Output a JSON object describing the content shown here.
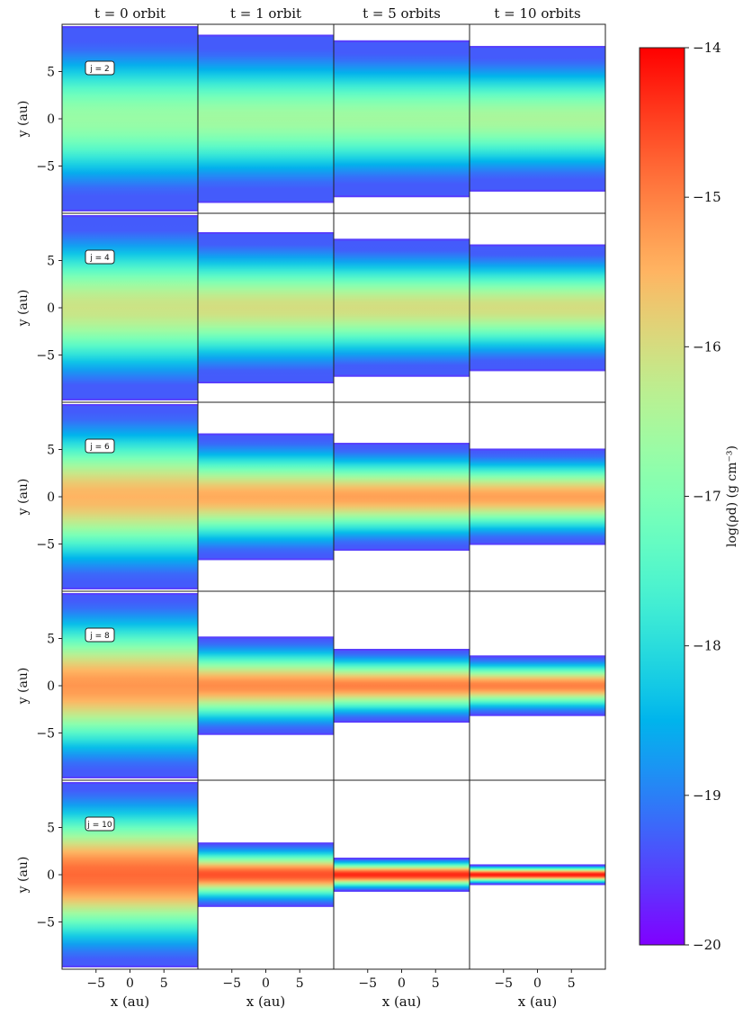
{
  "chart_data": {
    "type": "heatmap",
    "column_titles": [
      "t = 0 orbit",
      "t = 1 orbit",
      "t = 5 orbits",
      "t = 10 orbits"
    ],
    "row_labels": [
      "j = 2",
      "j = 4",
      "j = 6",
      "j = 8",
      "j = 10"
    ],
    "xlabel": "x (au)",
    "ylabel": "y (au)",
    "xlim": [
      -10,
      10
    ],
    "ylim": [
      -10,
      10
    ],
    "xticks": [
      -5,
      0,
      5
    ],
    "yticks": [
      5,
      0,
      -5
    ],
    "colorbar": {
      "label": "log(ρd) (g cm⁻³)",
      "range": [
        -20,
        -14
      ],
      "ticks": [
        -14,
        -15,
        -16,
        -17,
        -18,
        -19,
        -20
      ],
      "colormap": "rainbow"
    },
    "panels_note_values": "peak density (log g cm^-3) and vertical half-extent of dust layer (au), estimated",
    "panels": [
      [
        {
          "peak": -16.7,
          "half_extent": 9.8
        },
        {
          "peak": -16.6,
          "half_extent": 8.9
        },
        {
          "peak": -16.6,
          "half_extent": 8.3
        },
        {
          "peak": -16.5,
          "half_extent": 7.7
        }
      ],
      [
        {
          "peak": -16.1,
          "half_extent": 9.8
        },
        {
          "peak": -16.0,
          "half_extent": 8.0
        },
        {
          "peak": -16.0,
          "half_extent": 7.3
        },
        {
          "peak": -16.0,
          "half_extent": 6.7
        }
      ],
      [
        {
          "peak": -15.5,
          "half_extent": 9.8
        },
        {
          "peak": -15.4,
          "half_extent": 6.7
        },
        {
          "peak": -15.3,
          "half_extent": 5.7
        },
        {
          "peak": -15.3,
          "half_extent": 5.1
        }
      ],
      [
        {
          "peak": -15.2,
          "half_extent": 9.8
        },
        {
          "peak": -15.1,
          "half_extent": 5.2
        },
        {
          "peak": -15.0,
          "half_extent": 3.9
        },
        {
          "peak": -15.0,
          "half_extent": 3.2
        }
      ],
      [
        {
          "peak": -14.8,
          "half_extent": 9.8
        },
        {
          "peak": -14.6,
          "half_extent": 3.4
        },
        {
          "peak": -14.3,
          "half_extent": 1.8
        },
        {
          "peak": -14.2,
          "half_extent": 1.1
        }
      ]
    ]
  }
}
